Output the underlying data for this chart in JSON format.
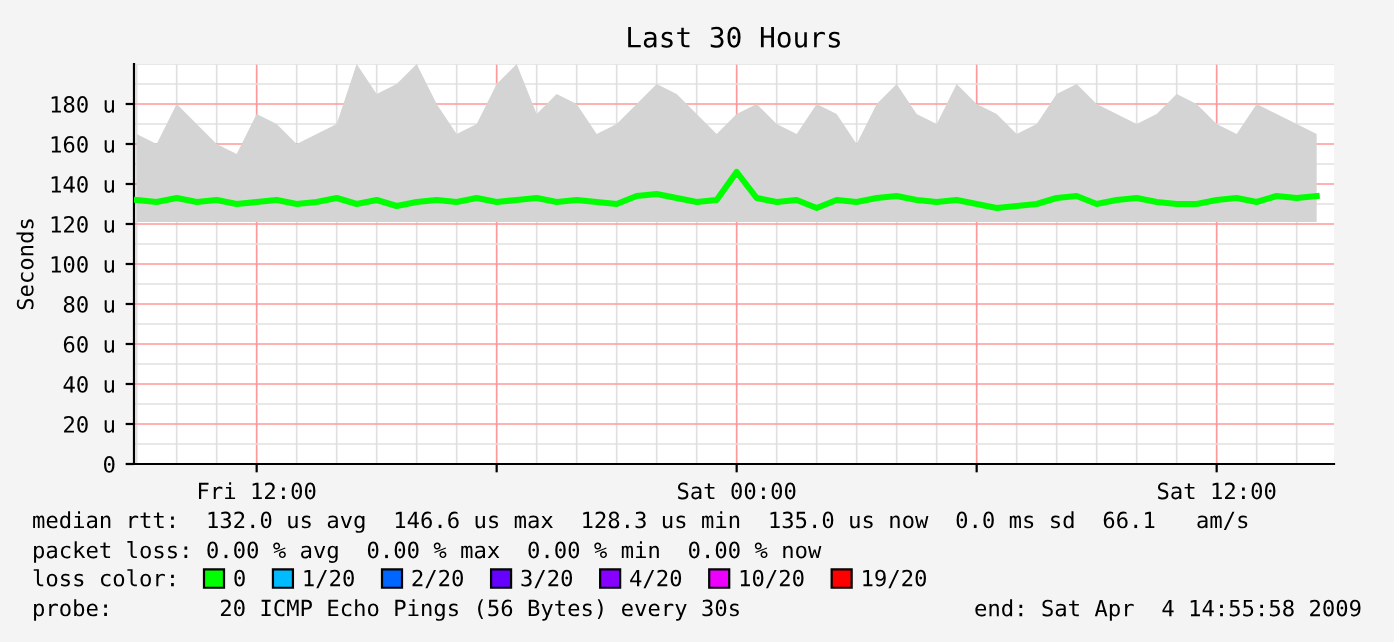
{
  "chart_data": {
    "type": "line",
    "title": "Last 30 Hours",
    "ylabel": "Seconds",
    "x": [
      "2009-04-03T09:00",
      "2009-04-03T09:30",
      "2009-04-03T10:00",
      "2009-04-03T10:30",
      "2009-04-03T11:00",
      "2009-04-03T11:30",
      "2009-04-03T12:00",
      "2009-04-03T12:30",
      "2009-04-03T13:00",
      "2009-04-03T13:30",
      "2009-04-03T14:00",
      "2009-04-03T14:30",
      "2009-04-03T15:00",
      "2009-04-03T15:30",
      "2009-04-03T16:00",
      "2009-04-03T16:30",
      "2009-04-03T17:00",
      "2009-04-03T17:30",
      "2009-04-03T18:00",
      "2009-04-03T18:30",
      "2009-04-03T19:00",
      "2009-04-03T19:30",
      "2009-04-03T20:00",
      "2009-04-03T20:30",
      "2009-04-03T21:00",
      "2009-04-03T21:30",
      "2009-04-03T22:00",
      "2009-04-03T22:30",
      "2009-04-03T23:00",
      "2009-04-03T23:30",
      "2009-04-04T00:00",
      "2009-04-04T00:30",
      "2009-04-04T01:00",
      "2009-04-04T01:30",
      "2009-04-04T02:00",
      "2009-04-04T02:30",
      "2009-04-04T03:00",
      "2009-04-04T03:30",
      "2009-04-04T04:00",
      "2009-04-04T04:30",
      "2009-04-04T05:00",
      "2009-04-04T05:30",
      "2009-04-04T06:00",
      "2009-04-04T06:30",
      "2009-04-04T07:00",
      "2009-04-04T07:30",
      "2009-04-04T08:00",
      "2009-04-04T08:30",
      "2009-04-04T09:00",
      "2009-04-04T09:30",
      "2009-04-04T10:00",
      "2009-04-04T10:30",
      "2009-04-04T11:00",
      "2009-04-04T11:30",
      "2009-04-04T12:00",
      "2009-04-04T12:30",
      "2009-04-04T13:00",
      "2009-04-04T13:30",
      "2009-04-04T14:00",
      "2009-04-04T14:30"
    ],
    "series": [
      {
        "name": "0",
        "color": "#00ff00",
        "values": [
          132,
          131,
          133,
          131,
          132,
          130,
          131,
          132,
          130,
          131,
          133,
          130,
          132,
          129,
          131,
          132,
          131,
          133,
          131,
          132,
          133,
          131,
          132,
          131,
          130,
          134,
          135,
          133,
          131,
          132,
          146,
          133,
          131,
          132,
          128,
          132,
          131,
          133,
          134,
          132,
          131,
          132,
          130,
          128,
          129,
          130,
          133,
          134,
          130,
          132,
          133,
          131,
          130,
          130,
          132,
          133,
          131,
          134,
          133,
          134
        ],
        "lower": [
          121,
          121,
          121,
          121,
          121,
          121,
          121,
          121,
          121,
          121,
          121,
          121,
          121,
          121,
          121,
          121,
          121,
          121,
          121,
          121,
          121,
          121,
          121,
          121,
          121,
          121,
          121,
          121,
          121,
          121,
          121,
          121,
          121,
          121,
          121,
          121,
          121,
          121,
          121,
          121,
          121,
          121,
          121,
          121,
          121,
          121,
          121,
          121,
          121,
          121,
          121,
          121,
          121,
          121,
          121,
          121,
          121,
          121,
          121,
          121
        ],
        "upper": [
          165,
          160,
          180,
          170,
          160,
          155,
          175,
          170,
          160,
          165,
          170,
          200,
          185,
          190,
          200,
          180,
          165,
          170,
          190,
          200,
          175,
          185,
          180,
          165,
          170,
          180,
          190,
          185,
          175,
          165,
          175,
          180,
          170,
          165,
          180,
          175,
          160,
          180,
          190,
          175,
          170,
          190,
          180,
          175,
          165,
          170,
          185,
          190,
          180,
          175,
          170,
          175,
          185,
          180,
          170,
          165,
          180,
          175,
          170,
          165
        ]
      },
      {
        "name": "1/20",
        "color": "#00bbff",
        "values": [
          null,
          null,
          null,
          null,
          null,
          null,
          null,
          null,
          null,
          null,
          null,
          null,
          null,
          null,
          null,
          null,
          null,
          null,
          null,
          null,
          null,
          null,
          null,
          null,
          null,
          null,
          null,
          null,
          null,
          null,
          null,
          null,
          null,
          null,
          null,
          null,
          null,
          null,
          null,
          null,
          null,
          null,
          null,
          null,
          null,
          null,
          null,
          null,
          null,
          null,
          null,
          null,
          null,
          null,
          null,
          null,
          null,
          null,
          null,
          null
        ]
      },
      {
        "name": "2/20",
        "color": "#0066ff",
        "values": [
          null,
          null,
          null,
          null,
          null,
          null,
          null,
          null,
          null,
          null,
          null,
          null,
          null,
          null,
          null,
          null,
          null,
          null,
          null,
          null,
          null,
          null,
          null,
          null,
          null,
          null,
          null,
          null,
          null,
          null,
          null,
          null,
          null,
          null,
          null,
          null,
          null,
          null,
          null,
          null,
          null,
          null,
          null,
          null,
          null,
          null,
          null,
          null,
          null,
          null,
          null,
          null,
          null,
          null,
          null,
          null,
          null,
          null,
          null,
          null
        ]
      },
      {
        "name": "3/20",
        "color": "#6600ff",
        "values": [
          null,
          null,
          null,
          null,
          null,
          null,
          null,
          null,
          null,
          null,
          null,
          null,
          null,
          null,
          null,
          null,
          null,
          null,
          null,
          null,
          null,
          null,
          null,
          null,
          null,
          null,
          null,
          null,
          null,
          null,
          null,
          null,
          null,
          null,
          null,
          null,
          null,
          null,
          null,
          null,
          null,
          null,
          null,
          null,
          null,
          null,
          null,
          null,
          null,
          null,
          null,
          null,
          null,
          null,
          null,
          null,
          null,
          null,
          null,
          null
        ]
      },
      {
        "name": "4/20",
        "color": "#8800ff",
        "values": [
          null,
          null,
          null,
          null,
          null,
          null,
          null,
          null,
          null,
          null,
          null,
          null,
          null,
          null,
          null,
          null,
          null,
          null,
          null,
          null,
          null,
          null,
          null,
          null,
          null,
          null,
          null,
          null,
          null,
          null,
          null,
          null,
          null,
          null,
          null,
          null,
          null,
          null,
          null,
          null,
          null,
          null,
          null,
          null,
          null,
          null,
          null,
          null,
          null,
          null,
          null,
          null,
          null,
          null,
          null,
          null,
          null,
          null,
          null,
          null
        ]
      },
      {
        "name": "10/20",
        "color": "#ee00ff",
        "values": [
          null,
          null,
          null,
          null,
          null,
          null,
          null,
          null,
          null,
          null,
          null,
          null,
          null,
          null,
          null,
          null,
          null,
          null,
          null,
          null,
          null,
          null,
          null,
          null,
          null,
          null,
          null,
          null,
          null,
          null,
          null,
          null,
          null,
          null,
          null,
          null,
          null,
          null,
          null,
          null,
          null,
          null,
          null,
          null,
          null,
          null,
          null,
          null,
          null,
          null,
          null,
          null,
          null,
          null,
          null,
          null,
          null,
          null,
          null,
          null
        ]
      },
      {
        "name": "19/20",
        "color": "#ff0000",
        "values": [
          null,
          null,
          null,
          null,
          null,
          null,
          null,
          null,
          null,
          null,
          null,
          null,
          null,
          null,
          null,
          null,
          null,
          null,
          null,
          null,
          null,
          null,
          null,
          null,
          null,
          null,
          null,
          null,
          null,
          null,
          null,
          null,
          null,
          null,
          null,
          null,
          null,
          null,
          null,
          null,
          null,
          null,
          null,
          null,
          null,
          null,
          null,
          null,
          null,
          null,
          null,
          null,
          null,
          null,
          null,
          null,
          null,
          null,
          null,
          null
        ]
      }
    ],
    "legend_title": "loss color:",
    "legend": "bottom",
    "grid": true,
    "marker": "none",
    "line_style": "solid",
    "xlim": [
      "2009-04-03T08:56",
      "2009-04-04T14:56"
    ],
    "xticks": [
      {
        "value": "2009-04-03T12:00",
        "label": "Fri 12:00"
      },
      {
        "value": "2009-04-03T18:00",
        "label": null
      },
      {
        "value": "2009-04-04T00:00",
        "label": "Sat 00:00"
      },
      {
        "value": "2009-04-04T06:00",
        "label": null
      },
      {
        "value": "2009-04-04T12:00",
        "label": "Sat 12:00"
      }
    ],
    "ylim": [
      0,
      200
    ],
    "yticks": [
      {
        "value": 0,
        "label": "0"
      },
      {
        "value": 20,
        "label": "20 u"
      },
      {
        "value": 40,
        "label": "40 u"
      },
      {
        "value": 60,
        "label": "60 u"
      },
      {
        "value": 80,
        "label": "80 u"
      },
      {
        "value": 100,
        "label": "100 u"
      },
      {
        "value": 120,
        "label": "120 u"
      },
      {
        "value": 140,
        "label": "140 u"
      },
      {
        "value": 160,
        "label": "160 u"
      },
      {
        "value": 180,
        "label": "180 u"
      }
    ],
    "annotations": [
      "median rtt:  132.0 us avg  146.6 us max  128.3 us min  135.0 us now  0.0 ms sd  66.1   am/s",
      "packet loss: 0.00 % avg  0.00 % max  0.00 % min  0.00 % now",
      "probe:        20 ICMP Echo Pings (56 Bytes) every 30s",
      "end: Sat Apr  4 14:55:58 2009"
    ]
  }
}
